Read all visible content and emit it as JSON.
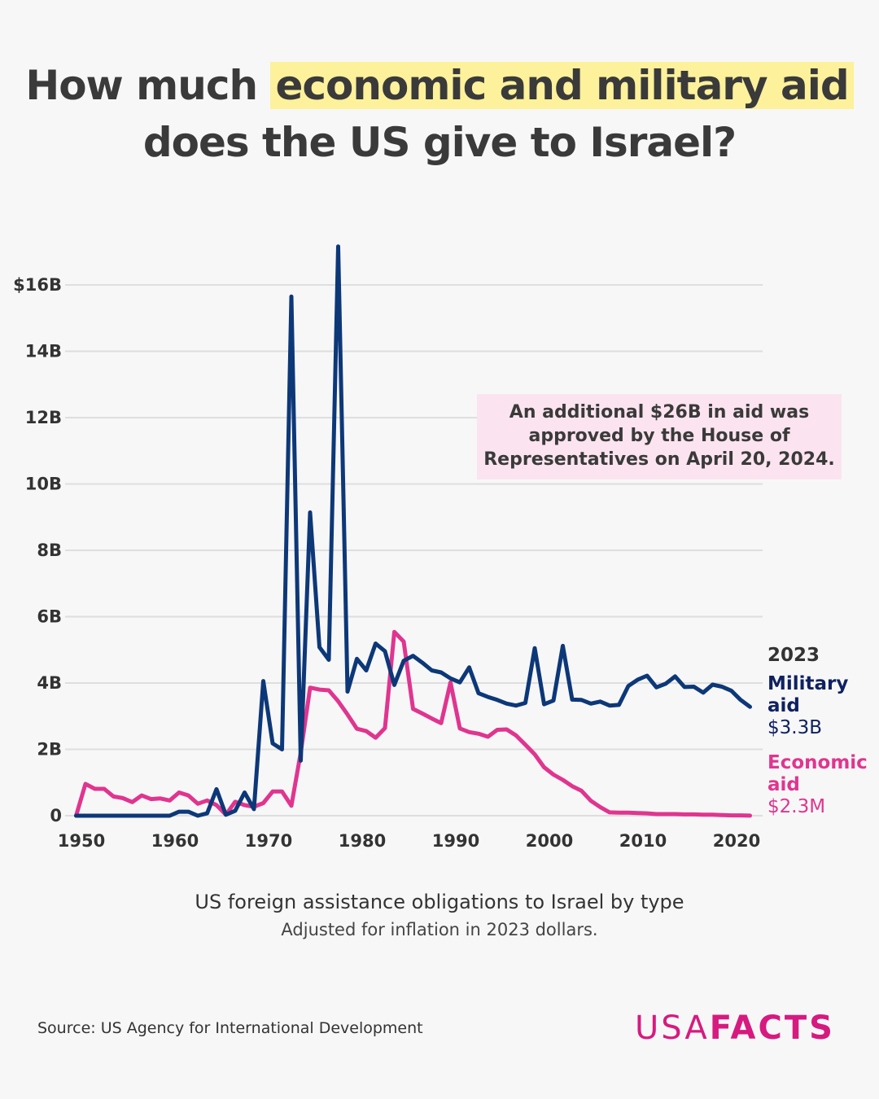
{
  "title": {
    "part1": "How much ",
    "highlight": "economic and military aid",
    "line2": "does the US give to Israel?"
  },
  "annotation": "An additional $26B in aid was approved by the House of Representatives on April 20, 2024.",
  "end_labels": {
    "year": "2023",
    "military": {
      "name": "Military aid",
      "value": "$3.3B"
    },
    "economic": {
      "name": "Economic aid",
      "value": "$2.3M"
    }
  },
  "subtitle": "US foreign assistance obligations to Israel by type",
  "note": "Adjusted for inflation in 2023 dollars.",
  "source": "Source: US Agency for International Development",
  "logo": {
    "light": "USA",
    "bold": "FACTS"
  },
  "colors": {
    "military": "#0d3878",
    "economic": "#e0358f",
    "highlight": "#fdf19b",
    "annotation_bg": "#fbe4ef",
    "logo": "#d61a7f"
  },
  "chart_data": {
    "type": "line",
    "x_start": 1951,
    "x_end": 2023,
    "xlim": [
      1950,
      2023
    ],
    "ylim": [
      0,
      17.2
    ],
    "y_unit": "billions of 2023 USD",
    "grid": true,
    "x_ticks": [
      "1950",
      "1960",
      "1970",
      "1980",
      "1990",
      "2000",
      "2010",
      "2020"
    ],
    "x_tick_values": [
      1950,
      1960,
      1970,
      1980,
      1990,
      2000,
      2010,
      2020
    ],
    "y_ticks": [
      "0",
      "2B",
      "4B",
      "6B",
      "8B",
      "10B",
      "12B",
      "14B",
      "$16B"
    ],
    "y_tick_values": [
      0,
      2,
      4,
      6,
      8,
      10,
      12,
      14,
      16
    ],
    "series": [
      {
        "name": "Military aid",
        "color": "#0d3878",
        "values": [
          0,
          0,
          0,
          0,
          0,
          0,
          0,
          0,
          0,
          0,
          0,
          0.12,
          0.12,
          0,
          0.07,
          0.8,
          0.03,
          0.15,
          0.7,
          0.2,
          4.06,
          2.18,
          2.0,
          15.65,
          1.66,
          9.14,
          5.08,
          4.7,
          17.16,
          3.74,
          4.73,
          4.38,
          5.19,
          4.96,
          3.94,
          4.67,
          4.82,
          4.61,
          4.38,
          4.32,
          4.14,
          4.02,
          4.47,
          3.69,
          3.58,
          3.49,
          3.38,
          3.32,
          3.4,
          5.05,
          3.36,
          3.47,
          5.12,
          3.5,
          3.49,
          3.38,
          3.44,
          3.32,
          3.34,
          3.91,
          4.1,
          4.22,
          3.87,
          3.98,
          4.2,
          3.88,
          3.89,
          3.71,
          3.95,
          3.89,
          3.77,
          3.49,
          3.28
        ]
      },
      {
        "name": "Economic aid",
        "color": "#e0358f",
        "values": [
          0,
          0.96,
          0.81,
          0.81,
          0.58,
          0.53,
          0.41,
          0.61,
          0.5,
          0.52,
          0.46,
          0.7,
          0.61,
          0.36,
          0.46,
          0.32,
          0.03,
          0.42,
          0.32,
          0.27,
          0.38,
          0.73,
          0.73,
          0.3,
          1.9,
          3.86,
          3.8,
          3.78,
          3.45,
          3.05,
          2.62,
          2.55,
          2.35,
          2.64,
          5.54,
          5.25,
          3.22,
          3.08,
          2.93,
          2.79,
          4.02,
          2.63,
          2.52,
          2.47,
          2.38,
          2.59,
          2.6,
          2.42,
          2.14,
          1.85,
          1.46,
          1.24,
          1.08,
          0.89,
          0.75,
          0.45,
          0.26,
          0.1,
          0.09,
          0.09,
          0.08,
          0.07,
          0.05,
          0.05,
          0.05,
          0.04,
          0.04,
          0.03,
          0.03,
          0.02,
          0.01,
          0.01,
          0.0023
        ]
      }
    ]
  }
}
